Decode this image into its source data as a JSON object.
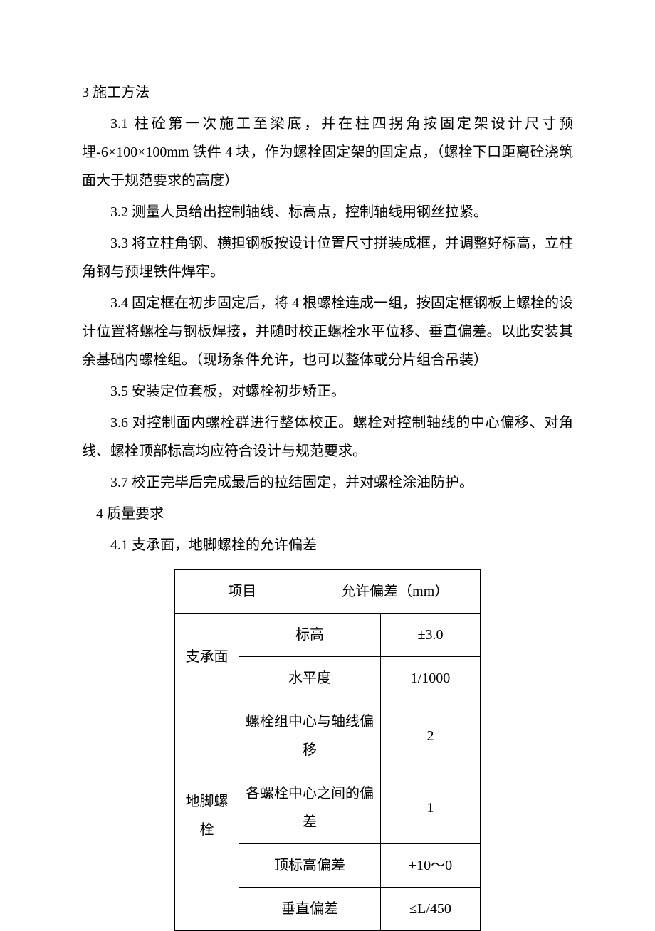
{
  "section3": {
    "title": "3 施工方法",
    "p1": "3.1 柱砼第一次施工至梁底，并在柱四拐角按固定架设计尺寸预埋-6×100×100mm 铁件 4 块，作为螺栓固定架的固定点，（螺栓下口距离砼浇筑面大于规范要求的高度）",
    "p2": "3.2 测量人员给出控制轴线、标高点，控制轴线用钢丝拉紧。",
    "p3": "3.3 将立柱角钢、横担钢板按设计位置尺寸拼装成框，并调整好标高，立柱角钢与预埋铁件焊牢。",
    "p4": "3.4 固定框在初步固定后，将 4 根螺栓连成一组，按固定框钢板上螺栓的设计位置将螺栓与钢板焊接，并随时校正螺栓水平位移、垂直偏差。以此安装其余基础内螺栓组。（现场条件允许，也可以整体或分片组合吊装）",
    "p5": "3.5 安装定位套板，对螺栓初步矫正。",
    "p6": "3.6 对控制面内螺栓群进行整体校正。螺栓对控制轴线的中心偏移、对角线、螺栓顶部标高均应符合设计与规范要求。",
    "p7": "3.7 校正完毕后完成最后的拉结固定，并对螺栓涂油防护。"
  },
  "section4": {
    "title": "4 质量要求",
    "subtitle": "4.1 支承面，地脚螺栓的允许偏差"
  },
  "table": {
    "header_item": "项目",
    "header_tolerance": "允许偏差（mm）",
    "group1_label": "支承面",
    "group2_label": "地脚螺栓",
    "rows": [
      {
        "param": "标高",
        "val": "±3.0"
      },
      {
        "param": "水平度",
        "val": "1/1000"
      },
      {
        "param": "螺栓组中心与轴线偏移",
        "val": "2"
      },
      {
        "param": "各螺栓中心之间的偏差",
        "val": "1"
      },
      {
        "param": "顶标高偏差",
        "val": "+10～0"
      },
      {
        "param": "垂直偏差",
        "val": "≤L/450"
      }
    ]
  },
  "style": {
    "background_color": "#ffffff",
    "text_color": "#000000",
    "border_color": "#000000",
    "font_size_body": 20,
    "line_height": 2.0
  }
}
